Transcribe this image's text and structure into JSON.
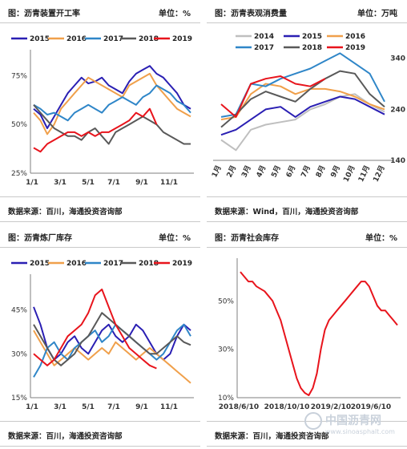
{
  "panels": [
    {
      "title": "图：沥青装置开工率",
      "unit": "单位：%",
      "source": "数据来源：百川，海通投资咨询部"
    },
    {
      "title": "图：沥青表观消费量",
      "unit": "单位：万吨",
      "source": "数据来源：Wind，百川，海通投资咨询部"
    },
    {
      "title": "图：沥青炼厂库存",
      "unit": "单位：%",
      "source": "数据来源：百川，海通投资咨询部"
    },
    {
      "title": "图：沥青社会库存",
      "unit": "单位：%",
      "source": "数据来源：百川，海通投资咨询部"
    }
  ],
  "watermark": {
    "name": "中国沥青网",
    "url": "www.sinoasphalt.com"
  },
  "colors": {
    "2014": "#bfbfbf",
    "2015": "#2a1fb3",
    "2016": "#f0a04b",
    "2017": "#2f86c8",
    "2018": "#595959",
    "2019": "#e8141c"
  },
  "chart_data": [
    {
      "type": "line",
      "title": "图：沥青装置开工率",
      "ylabel": "单位：%",
      "xticks": [
        "1/1",
        "3/1",
        "5/1",
        "7/1",
        "9/1",
        "11/1"
      ],
      "yticks": [
        "25%",
        "50%",
        "75%"
      ],
      "ylim": [
        25,
        85
      ],
      "legend": "top",
      "series": [
        {
          "name": "2015",
          "values": [
            58,
            55,
            48,
            54,
            60,
            66,
            70,
            74,
            71,
            72,
            74,
            70,
            68,
            66,
            72,
            76,
            78,
            80,
            76,
            74,
            70,
            66,
            60,
            58
          ]
        },
        {
          "name": "2016",
          "values": [
            56,
            52,
            45,
            50,
            58,
            62,
            66,
            70,
            74,
            72,
            70,
            68,
            66,
            64,
            70,
            72,
            74,
            76,
            70,
            66,
            62,
            58,
            56,
            54
          ]
        },
        {
          "name": "2017",
          "values": [
            60,
            58,
            55,
            56,
            54,
            52,
            56,
            58,
            60,
            58,
            56,
            60,
            62,
            64,
            62,
            60,
            64,
            66,
            70,
            68,
            66,
            62,
            60,
            56
          ]
        },
        {
          "name": "2018",
          "values": [
            60,
            56,
            52,
            48,
            46,
            44,
            44,
            42,
            46,
            48,
            44,
            40,
            46,
            48,
            50,
            52,
            54,
            52,
            50,
            46,
            44,
            42,
            40,
            40
          ]
        },
        {
          "name": "2019",
          "values": [
            38,
            36,
            40,
            42,
            44,
            46,
            46,
            44,
            46,
            44,
            46,
            46,
            48,
            50,
            52,
            56,
            54,
            58,
            50
          ]
        }
      ]
    },
    {
      "type": "line",
      "title": "图：沥青表观消费量",
      "ylabel": "单位：万吨",
      "xticks": [
        "1月",
        "2月",
        "3月",
        "4月",
        "5月",
        "6月",
        "7月",
        "8月",
        "9月",
        "10月",
        "11月",
        "12月"
      ],
      "yticks": [
        "140",
        "240",
        "340"
      ],
      "ylim": [
        140,
        360
      ],
      "legend": "top",
      "series": [
        {
          "name": "2014",
          "values": [
            180,
            160,
            200,
            210,
            215,
            220,
            240,
            250,
            265,
            270,
            250,
            235
          ]
        },
        {
          "name": "2015",
          "values": [
            190,
            200,
            220,
            240,
            245,
            225,
            245,
            255,
            265,
            260,
            245,
            230
          ]
        },
        {
          "name": "2016",
          "values": [
            220,
            225,
            270,
            290,
            285,
            270,
            280,
            280,
            275,
            265,
            250,
            240
          ]
        },
        {
          "name": "2017",
          "values": [
            225,
            230,
            290,
            285,
            300,
            310,
            320,
            335,
            350,
            330,
            310,
            255
          ]
        },
        {
          "name": "2018",
          "values": [
            205,
            230,
            260,
            275,
            265,
            255,
            280,
            300,
            315,
            310,
            270,
            245
          ]
        },
        {
          "name": "2019",
          "values": [
            250,
            225,
            290,
            300,
            305,
            290,
            285,
            300
          ]
        }
      ]
    },
    {
      "type": "line",
      "title": "图：沥青炼厂库存",
      "ylabel": "单位：%",
      "xticks": [
        "1/1",
        "3/1",
        "5/1",
        "7/1",
        "9/1",
        "11/1"
      ],
      "yticks": [
        "15%",
        "30%",
        "45%"
      ],
      "ylim": [
        15,
        55
      ],
      "legend": "top",
      "series": [
        {
          "name": "2015",
          "values": [
            46,
            40,
            32,
            28,
            30,
            34,
            36,
            32,
            30,
            34,
            38,
            40,
            36,
            34,
            36,
            40,
            38,
            34,
            30,
            28,
            30,
            36,
            40,
            38
          ]
        },
        {
          "name": "2016",
          "values": [
            38,
            34,
            30,
            26,
            28,
            30,
            32,
            30,
            28,
            30,
            32,
            30,
            34,
            32,
            30,
            28,
            30,
            32,
            30,
            28,
            26,
            24,
            22,
            20
          ]
        },
        {
          "name": "2017",
          "values": [
            22,
            26,
            32,
            34,
            30,
            28,
            32,
            34,
            36,
            38,
            34,
            36,
            40,
            38,
            36,
            34,
            32,
            30,
            28,
            30,
            34,
            38,
            40,
            36
          ]
        },
        {
          "name": "2018",
          "values": [
            40,
            36,
            32,
            28,
            26,
            28,
            30,
            34,
            36,
            40,
            44,
            42,
            40,
            38,
            36,
            34,
            32,
            30,
            30,
            32,
            34,
            36,
            34,
            33
          ]
        },
        {
          "name": "2019",
          "values": [
            30,
            28,
            26,
            28,
            32,
            36,
            38,
            40,
            44,
            50,
            52,
            46,
            40,
            36,
            32,
            30,
            28,
            26,
            25
          ]
        }
      ]
    },
    {
      "type": "line",
      "title": "图：沥青社会库存",
      "ylabel": "单位：%",
      "xticks": [
        "2018/6/10",
        "2018/10/10",
        "2019/2/10",
        "2019/6/10"
      ],
      "yticks": [
        "10%",
        "30%",
        "50%"
      ],
      "ylim": [
        10,
        65
      ],
      "legend": "none",
      "series": [
        {
          "name": "",
          "values": [
            62,
            60,
            58,
            58,
            56,
            55,
            54,
            52,
            50,
            46,
            42,
            36,
            30,
            24,
            18,
            14,
            12,
            11,
            14,
            20,
            30,
            38,
            42,
            44,
            46,
            48,
            50,
            52,
            54,
            56,
            58,
            58,
            56,
            52,
            48,
            46,
            46,
            44,
            42,
            40
          ]
        }
      ]
    }
  ]
}
